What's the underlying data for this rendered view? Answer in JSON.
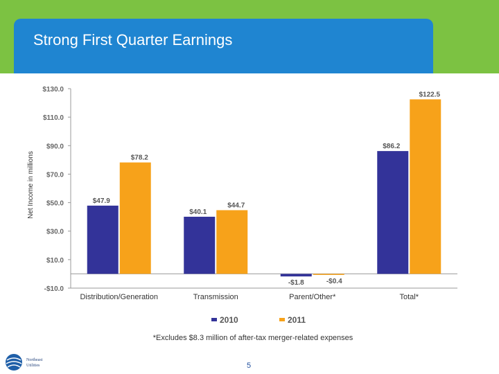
{
  "slide": {
    "title": "Strong First Quarter Earnings",
    "footnote": "*Excludes $8.3 million of after-tax merger-related expenses",
    "page_number": "5",
    "logo_text": [
      "Northeast",
      "Utilities"
    ]
  },
  "colors": {
    "band": "#7cc242",
    "title_panel": "#1f85d1",
    "series_2010": "#333399",
    "series_2011": "#f7a21a"
  },
  "chart_data": {
    "type": "bar",
    "title": "",
    "xlabel": "",
    "ylabel": "Net Income in millions",
    "categories": [
      "Distribution/Generation",
      "Transmission",
      "Parent/Other*",
      "Total*"
    ],
    "series": [
      {
        "name": "2010",
        "values": [
          47.9,
          40.1,
          -1.8,
          86.2
        ],
        "labels": [
          "$47.9",
          "$40.1",
          "-$1.8",
          "$86.2"
        ]
      },
      {
        "name": "2011",
        "values": [
          78.2,
          44.7,
          -0.4,
          122.5
        ],
        "labels": [
          "$78.2",
          "$44.7",
          "-$0.4",
          "$122.5"
        ]
      }
    ],
    "ylim": [
      -10,
      130
    ],
    "yticks": [
      -10,
      10,
      30,
      50,
      70,
      90,
      110,
      130
    ],
    "ytick_labels": [
      "-$10.0",
      "$10.0",
      "$30.0",
      "$50.0",
      "$70.0",
      "$90.0",
      "$110.0",
      "$130.0"
    ],
    "grid": false,
    "legend": "bottom-center"
  }
}
